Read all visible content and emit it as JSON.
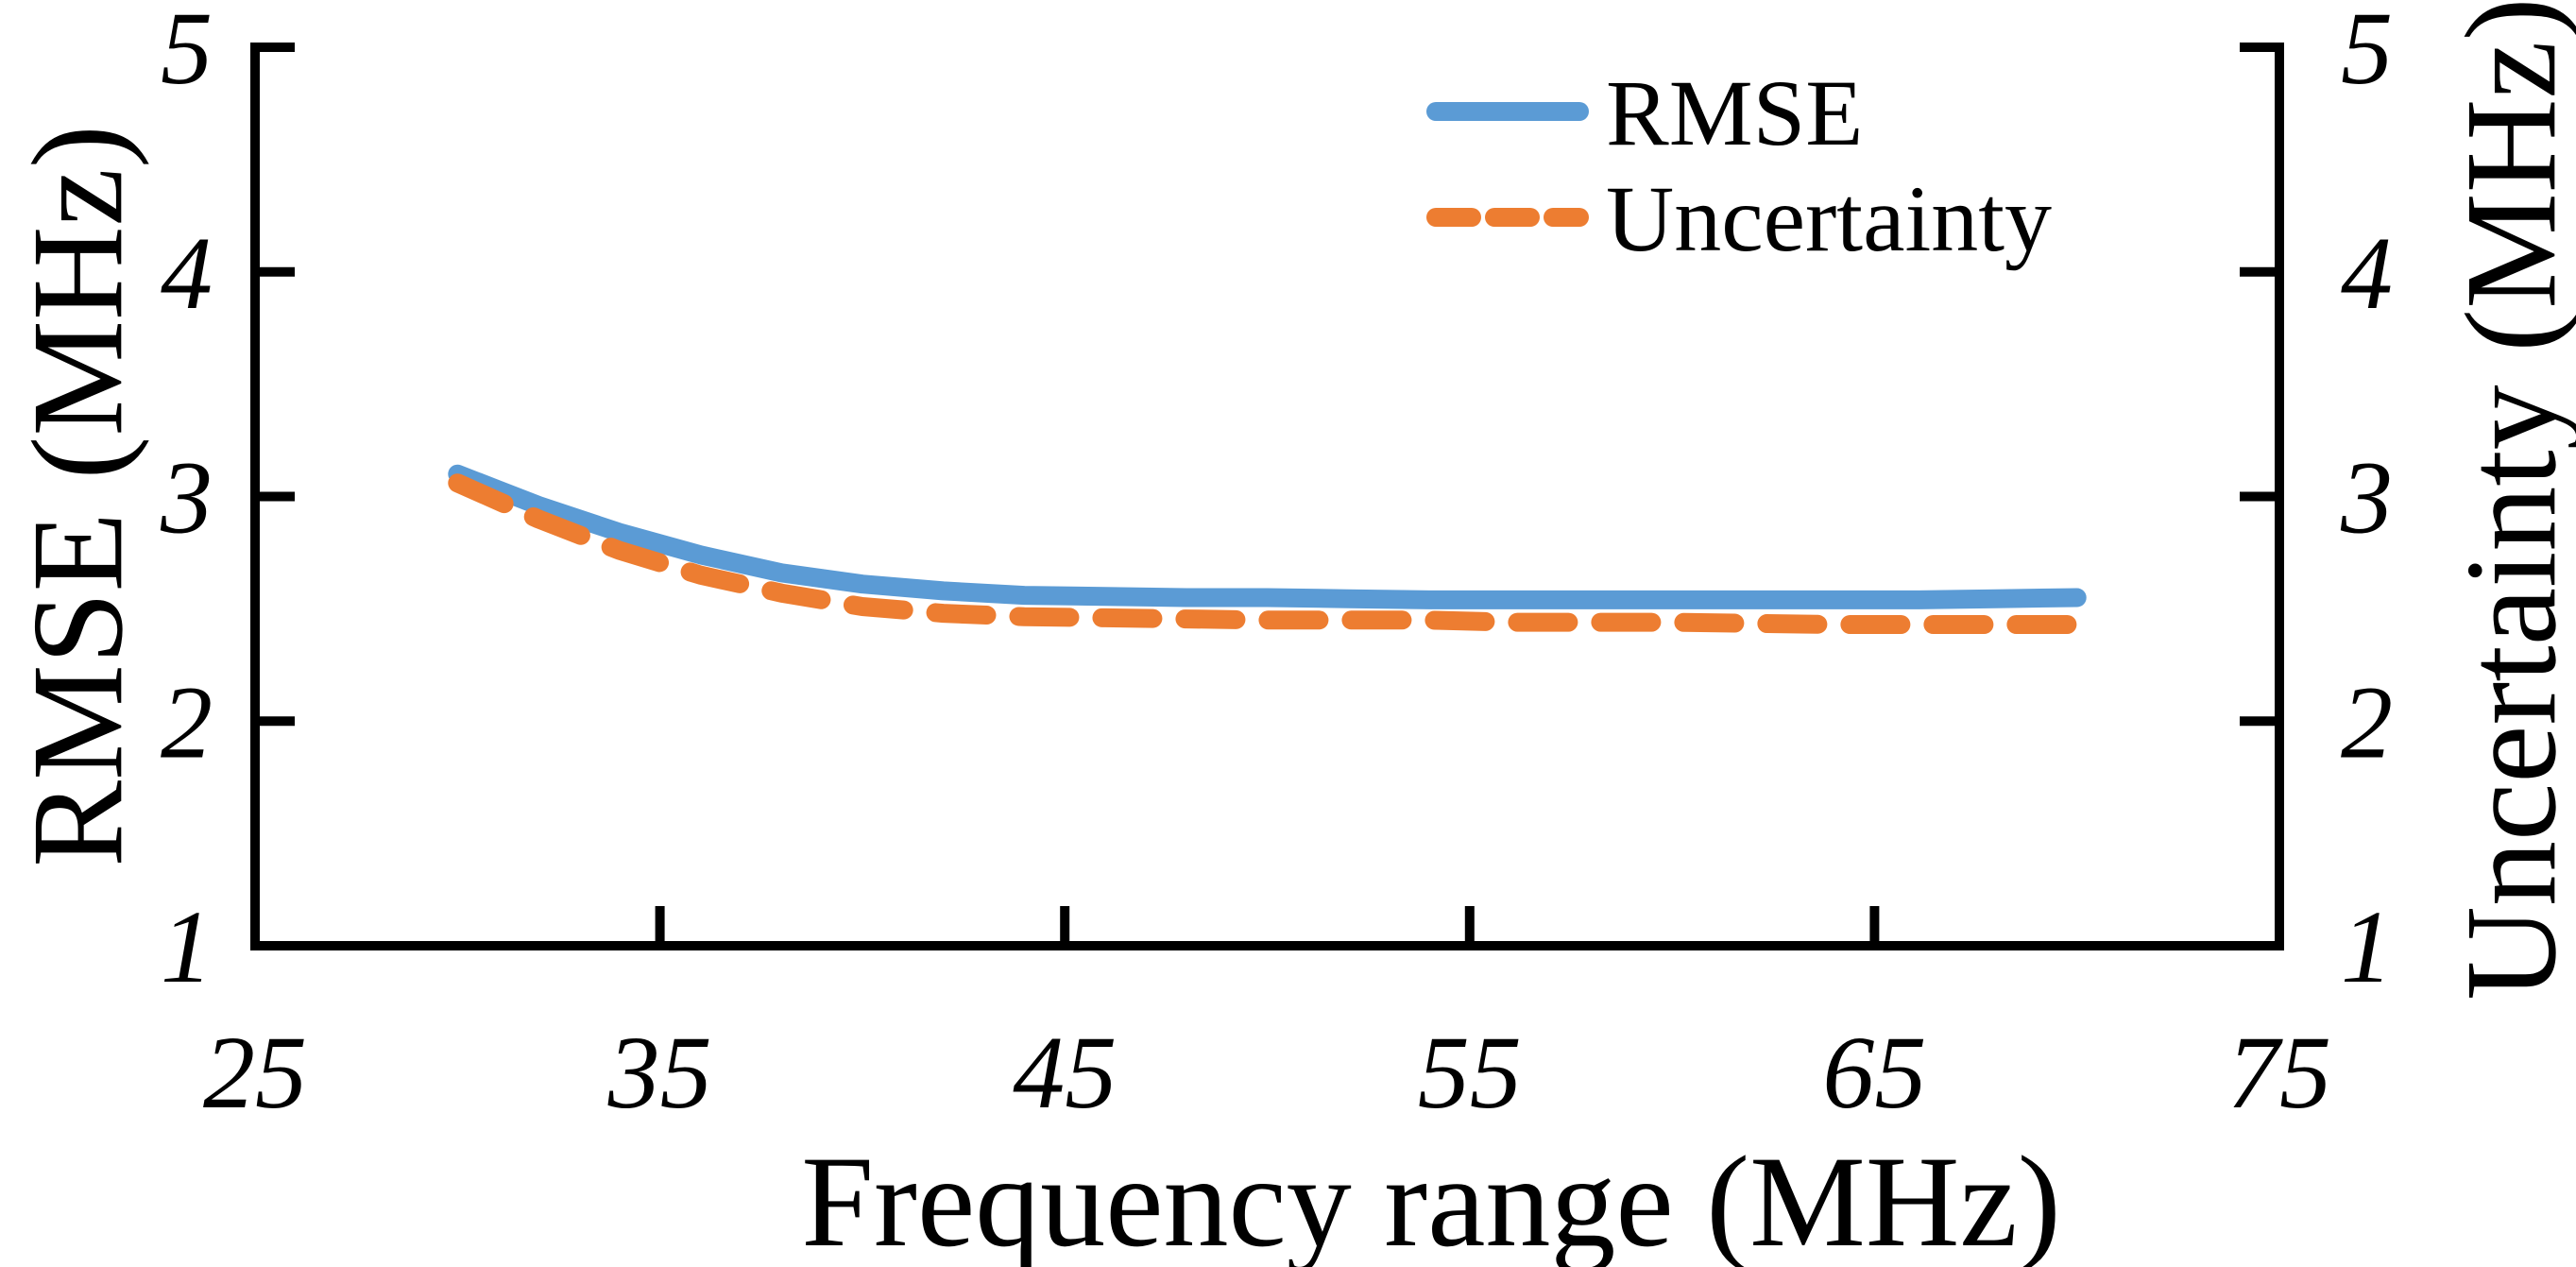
{
  "chart_data": {
    "type": "line",
    "title": "",
    "background": "#FFFFFF",
    "axis_color": "#000000",
    "grid": false,
    "x_axis": {
      "label": "Frequency range (MHz)",
      "min": 25,
      "max": 75,
      "ticks": [
        25,
        35,
        45,
        55,
        65,
        75
      ]
    },
    "y_left": {
      "label": "RMSE (MHz)",
      "min": 1,
      "max": 5,
      "ticks": [
        1,
        2,
        3,
        4,
        5
      ]
    },
    "y_right": {
      "label": "Uncertainty (MHz)",
      "min": 1,
      "max": 5,
      "ticks": [
        1,
        2,
        3,
        4,
        5
      ]
    },
    "x": [
      30,
      32,
      34,
      36,
      38,
      40,
      42,
      44,
      46,
      48,
      50,
      52,
      54,
      56,
      58,
      60,
      62,
      64,
      66,
      68,
      70
    ],
    "series": [
      {
        "name": "RMSE",
        "color": "#5B9BD5",
        "style": "solid",
        "axis": "left",
        "values": [
          3.1,
          2.96,
          2.84,
          2.74,
          2.66,
          2.61,
          2.58,
          2.56,
          2.555,
          2.55,
          2.55,
          2.545,
          2.54,
          2.54,
          2.54,
          2.54,
          2.54,
          2.54,
          2.54,
          2.545,
          2.55
        ]
      },
      {
        "name": "Uncertainty",
        "color": "#ED7D31",
        "style": "dashed",
        "axis": "right",
        "values": [
          3.06,
          2.9,
          2.76,
          2.65,
          2.57,
          2.51,
          2.48,
          2.465,
          2.46,
          2.455,
          2.45,
          2.45,
          2.45,
          2.44,
          2.44,
          2.44,
          2.435,
          2.43,
          2.43,
          2.43,
          2.43
        ]
      }
    ],
    "legend": {
      "position": "top-right",
      "entries": [
        "RMSE",
        "Uncertainty"
      ]
    }
  }
}
